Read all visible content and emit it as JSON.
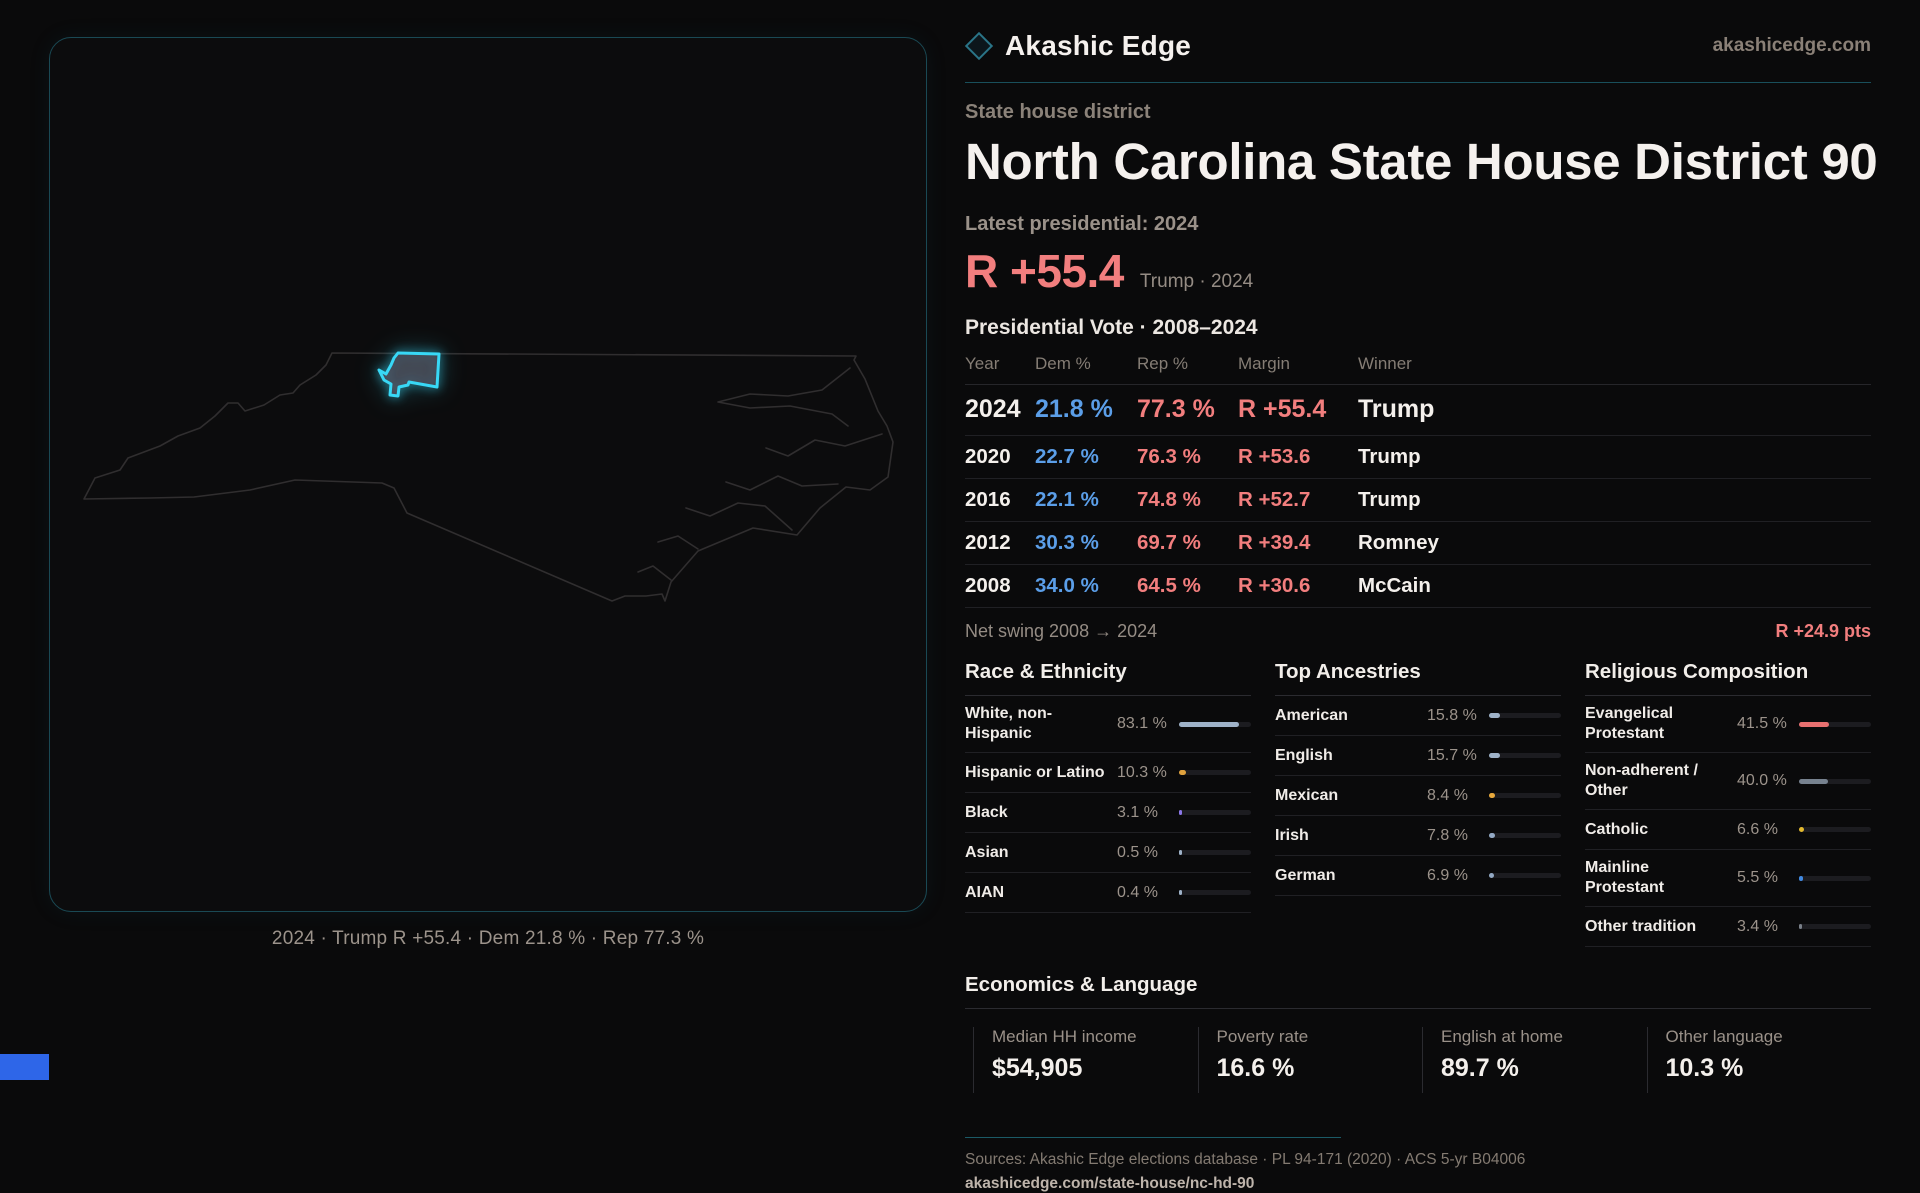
{
  "brand": {
    "name": "Akashic Edge",
    "domain": "akashicedge.com"
  },
  "page": {
    "kicker": "State house district",
    "title": "North Carolina State House District 90",
    "latest_label": "Latest presidential: 2024",
    "headline_margin": "R +55.4",
    "headline_sub": "Trump · 2024"
  },
  "map": {
    "caption": "2024 · Trump R +55.4 · Dem 21.8 % · Rep 77.3 %"
  },
  "colors": {
    "accent_red": "#f27e7e",
    "accent_blue": "#5b9ee8",
    "accent_cyan": "#38d8f6",
    "rule_teal": "#194f5b"
  },
  "vote_table": {
    "title": "Presidential Vote · 2008–2024",
    "columns": [
      "Year",
      "Dem %",
      "Rep %",
      "Margin",
      "Winner"
    ],
    "rows": [
      {
        "year": "2024",
        "dem": "21.8 %",
        "rep": "77.3 %",
        "margin": "R +55.4",
        "winner": "Trump"
      },
      {
        "year": "2020",
        "dem": "22.7 %",
        "rep": "76.3 %",
        "margin": "R +53.6",
        "winner": "Trump"
      },
      {
        "year": "2016",
        "dem": "22.1 %",
        "rep": "74.8 %",
        "margin": "R +52.7",
        "winner": "Trump"
      },
      {
        "year": "2012",
        "dem": "30.3 %",
        "rep": "69.7 %",
        "margin": "R +39.4",
        "winner": "Romney"
      },
      {
        "year": "2008",
        "dem": "34.0 %",
        "rep": "64.5 %",
        "margin": "R +30.6",
        "winner": "McCain"
      }
    ],
    "net_swing_label": "Net swing 2008 → 2024",
    "net_swing_value": "R +24.9 pts"
  },
  "demographics": {
    "race": {
      "title": "Race & Ethnicity",
      "rows": [
        {
          "label": "White, non-Hispanic",
          "value": "83.1 %",
          "pct": 83.1,
          "color": "#9fb2c8"
        },
        {
          "label": "Hispanic or Latino",
          "value": "10.3 %",
          "pct": 10.3,
          "color": "#e0a23e"
        },
        {
          "label": "Black",
          "value": "3.1 %",
          "pct": 3.1,
          "color": "#8b77e8"
        },
        {
          "label": "Asian",
          "value": "0.5 %",
          "pct": 0.5,
          "color": "#9fb2c8"
        },
        {
          "label": "AIAN",
          "value": "0.4 %",
          "pct": 0.4,
          "color": "#9fb2c8"
        }
      ]
    },
    "ancestries": {
      "title": "Top Ancestries",
      "rows": [
        {
          "label": "American",
          "value": "15.8 %",
          "pct": 15.8,
          "color": "#9fb2c8"
        },
        {
          "label": "English",
          "value": "15.7 %",
          "pct": 15.7,
          "color": "#9fb2c8"
        },
        {
          "label": "Mexican",
          "value": "8.4 %",
          "pct": 8.4,
          "color": "#e8a93c"
        },
        {
          "label": "Irish",
          "value": "7.8 %",
          "pct": 7.8,
          "color": "#93a9c4"
        },
        {
          "label": "German",
          "value": "6.9 %",
          "pct": 6.9,
          "color": "#93a9c4"
        }
      ]
    },
    "religion": {
      "title": "Religious Composition",
      "rows": [
        {
          "label": "Evangelical Protestant",
          "value": "41.5 %",
          "pct": 41.5,
          "color": "#e87070"
        },
        {
          "label": "Non-adherent / Other",
          "value": "40.0 %",
          "pct": 40.0,
          "color": "#77828f"
        },
        {
          "label": "Catholic",
          "value": "6.6 %",
          "pct": 6.6,
          "color": "#e3b92e"
        },
        {
          "label": "Mainline Protestant",
          "value": "5.5 %",
          "pct": 5.5,
          "color": "#4189e0"
        },
        {
          "label": "Other tradition",
          "value": "3.4 %",
          "pct": 3.4,
          "color": "#7a8089"
        }
      ]
    }
  },
  "economics": {
    "title": "Economics & Language",
    "stats": [
      {
        "label": "Median HH income",
        "value": "$54,905"
      },
      {
        "label": "Poverty rate",
        "value": "16.6 %"
      },
      {
        "label": "English at home",
        "value": "89.7 %"
      },
      {
        "label": "Other language",
        "value": "10.3 %"
      }
    ]
  },
  "footer": {
    "sources": "Sources: Akashic Edge elections database · PL 94-171 (2020) · ACS 5-yr B04006",
    "permalink": "akashicedge.com/state-house/nc-hd-90"
  }
}
